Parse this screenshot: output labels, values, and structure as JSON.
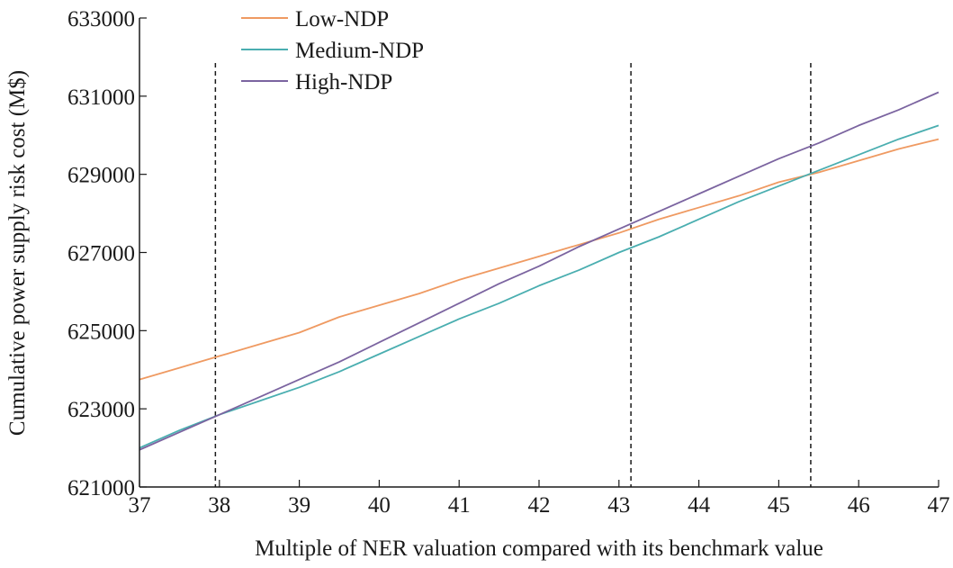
{
  "chart_data": {
    "type": "line",
    "xlabel": "Multiple of NER valuation compared with its benchmark value",
    "ylabel": "Cumulative power supply risk cost (M$)",
    "xlim": [
      37,
      47
    ],
    "ylim": [
      621000,
      633000
    ],
    "xticks": [
      37,
      38,
      39,
      40,
      41,
      42,
      43,
      44,
      45,
      46,
      47
    ],
    "yticks": [
      621000,
      623000,
      625000,
      627000,
      629000,
      631000,
      633000
    ],
    "grid": false,
    "legend_position": "top-left",
    "vlines": [
      37.95,
      43.15,
      45.4
    ],
    "series": [
      {
        "name": "Low-NDP",
        "color": "#ef9a62",
        "x": [
          37,
          37.5,
          38,
          38.5,
          39,
          39.5,
          40,
          40.5,
          41,
          41.5,
          42,
          42.5,
          43,
          43.5,
          44,
          44.5,
          45,
          45.5,
          46,
          46.5,
          47
        ],
        "y": [
          623750,
          624050,
          624350,
          624650,
          624950,
          625350,
          625650,
          625950,
          626300,
          626600,
          626900,
          627200,
          627500,
          627850,
          628150,
          628450,
          628800,
          629050,
          629350,
          629650,
          629900
        ]
      },
      {
        "name": "Medium-NDP",
        "color": "#4aaeb0",
        "x": [
          37,
          37.5,
          38,
          38.5,
          39,
          39.5,
          40,
          40.5,
          41,
          41.5,
          42,
          42.5,
          43,
          43.5,
          44,
          44.5,
          45,
          45.5,
          46,
          46.5,
          47
        ],
        "y": [
          622000,
          622450,
          622850,
          623200,
          623550,
          623950,
          624400,
          624850,
          625300,
          625700,
          626150,
          626550,
          627000,
          627400,
          627850,
          628300,
          628700,
          629100,
          629500,
          629900,
          630250
        ]
      },
      {
        "name": "High-NDP",
        "color": "#7b64a0",
        "x": [
          37,
          37.5,
          38,
          38.5,
          39,
          39.5,
          40,
          40.5,
          41,
          41.5,
          42,
          42.5,
          43,
          43.5,
          44,
          44.5,
          45,
          45.5,
          46,
          46.5,
          47
        ],
        "y": [
          621950,
          622400,
          622850,
          623300,
          623750,
          624200,
          624700,
          625200,
          625700,
          626200,
          626650,
          627150,
          627600,
          628050,
          628500,
          628950,
          629400,
          629800,
          630250,
          630650,
          631100
        ]
      }
    ]
  }
}
